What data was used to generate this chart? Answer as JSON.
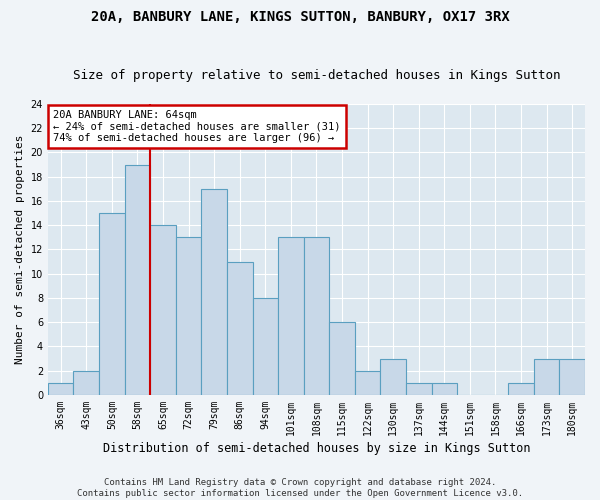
{
  "title1": "20A, BANBURY LANE, KINGS SUTTON, BANBURY, OX17 3RX",
  "title2": "Size of property relative to semi-detached houses in Kings Sutton",
  "xlabel": "Distribution of semi-detached houses by size in Kings Sutton",
  "ylabel": "Number of semi-detached properties",
  "footer1": "Contains HM Land Registry data © Crown copyright and database right 2024.",
  "footer2": "Contains public sector information licensed under the Open Government Licence v3.0.",
  "categories": [
    "36sqm",
    "43sqm",
    "50sqm",
    "58sqm",
    "65sqm",
    "72sqm",
    "79sqm",
    "86sqm",
    "94sqm",
    "101sqm",
    "108sqm",
    "115sqm",
    "122sqm",
    "130sqm",
    "137sqm",
    "144sqm",
    "151sqm",
    "158sqm",
    "166sqm",
    "173sqm",
    "180sqm"
  ],
  "values": [
    1,
    2,
    15,
    19,
    14,
    13,
    17,
    11,
    8,
    13,
    13,
    6,
    2,
    3,
    1,
    1,
    0,
    0,
    1,
    3,
    3
  ],
  "bar_color": "#c8d8e8",
  "bar_edge_color": "#5a9fc0",
  "subject_line_color": "#cc0000",
  "annotation_text": "20A BANBURY LANE: 64sqm\n← 24% of semi-detached houses are smaller (31)\n74% of semi-detached houses are larger (96) →",
  "annotation_box_color": "#cc0000",
  "ylim": [
    0,
    24
  ],
  "yticks": [
    0,
    2,
    4,
    6,
    8,
    10,
    12,
    14,
    16,
    18,
    20,
    22,
    24
  ],
  "bg_color": "#dde8f0",
  "fig_color": "#f0f4f8",
  "grid_color": "#ffffff",
  "title1_fontsize": 10,
  "title2_fontsize": 9,
  "xlabel_fontsize": 8.5,
  "ylabel_fontsize": 8,
  "tick_fontsize": 7,
  "footer_fontsize": 6.5,
  "annotation_fontsize": 7.5
}
